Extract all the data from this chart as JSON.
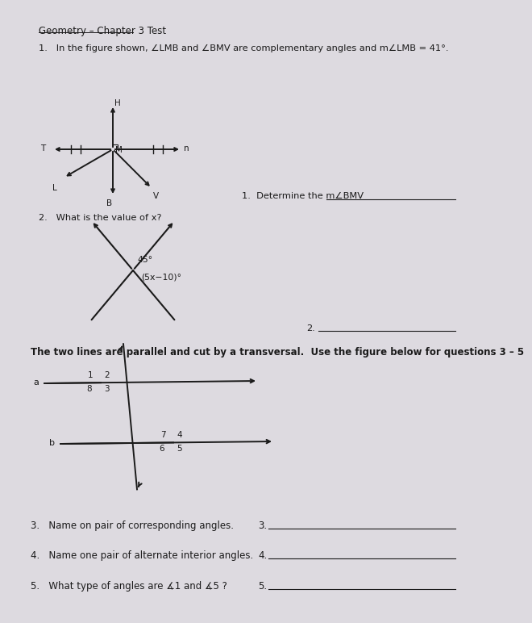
{
  "title": "Geometry – Chapter 3 Test",
  "bg_color": "#dddae0",
  "q1_text": "1.   In the figure shown, ∠LMB and ∠BMV are complementary angles and m∠LMB = 41°.",
  "q1a_label": "1.  Determine the m∠BMV",
  "q2_text": "2.   What is the value of x?",
  "q2_label": "2.",
  "parallel_intro": "The two lines are parallel and cut by a transversal.  Use the figure below for questions 3 – 5",
  "q3_text": "3.   Name on pair of corresponding angles.",
  "q3_label": "3.",
  "q4_text": "4.   Name one pair of alternate interior angles.",
  "q4_label": "4.",
  "q5_text": "5.   What type of angles are ∡1 and ∡5 ?",
  "q5_label": "5.",
  "line_color": "#1a1a1a",
  "angle_label_45": "45°",
  "angle_label_expr": "(5x−10)°",
  "fig_width": 572,
  "fig_height": 752
}
